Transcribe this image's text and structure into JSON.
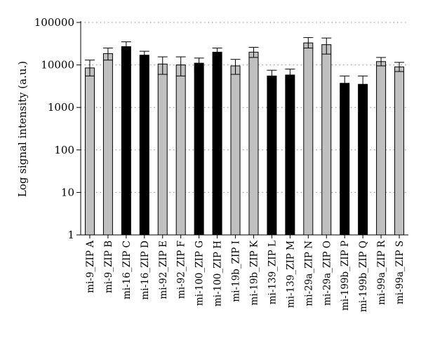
{
  "chart_data": {
    "type": "bar",
    "title": "",
    "xlabel": "",
    "ylabel": "Log signal intensity (a.u.)",
    "yscale": "log",
    "ylim": [
      1,
      100000
    ],
    "yticks": [
      {
        "value": 1,
        "label": "1"
      },
      {
        "value": 10,
        "label": "10"
      },
      {
        "value": 100,
        "label": "100"
      },
      {
        "value": 1000,
        "label": "1000"
      },
      {
        "value": 10000,
        "label": "10000"
      },
      {
        "value": 100000,
        "label": "100000"
      }
    ],
    "grid": "horizontal dotted",
    "colors": {
      "gray": "#c0c0c0",
      "black": "#000000"
    },
    "categories": [
      "mi-9_ZIP A",
      "mi-9_ZIP B",
      "mi-16_ZIP C",
      "mi-16_ZIP D",
      "mi-92_ZIP E",
      "mi-92_ZIP F",
      "mi-100_ZIP G",
      "mi-100_ZIP H",
      "mi-19b_ZIP I",
      "mi-19b_ZIP K",
      "mi-139_ZIP L",
      "mi-139_ZIP M",
      "mi-29a_ZIP N",
      "mi-29a_ZIP O",
      "mi-199b_ZIP P",
      "mi-199b_ZIP Q",
      "mi-99a_ZIP R",
      "mi-99a_ZIP S"
    ],
    "values": [
      8500,
      18500,
      27000,
      17000,
      10500,
      10000,
      11000,
      20000,
      9500,
      20000,
      5500,
      5800,
      33000,
      30000,
      3700,
      3500,
      12000,
      9000
    ],
    "errors": [
      [
        5500,
        13000
      ],
      [
        13000,
        25000
      ],
      [
        22000,
        35000
      ],
      [
        13500,
        21000
      ],
      [
        6000,
        15500
      ],
      [
        5500,
        15500
      ],
      [
        8000,
        14500
      ],
      [
        15500,
        25000
      ],
      [
        6000,
        13500
      ],
      [
        15000,
        26000
      ],
      [
        3800,
        7500
      ],
      [
        3800,
        8000
      ],
      [
        25000,
        44000
      ],
      [
        18000,
        43000
      ],
      [
        2400,
        5500
      ],
      [
        1500,
        5500
      ],
      [
        9500,
        15000
      ],
      [
        7000,
        11500
      ]
    ],
    "bar_colors": [
      "gray",
      "gray",
      "black",
      "black",
      "gray",
      "gray",
      "black",
      "black",
      "gray",
      "gray",
      "black",
      "black",
      "gray",
      "gray",
      "black",
      "black",
      "gray",
      "gray"
    ]
  }
}
